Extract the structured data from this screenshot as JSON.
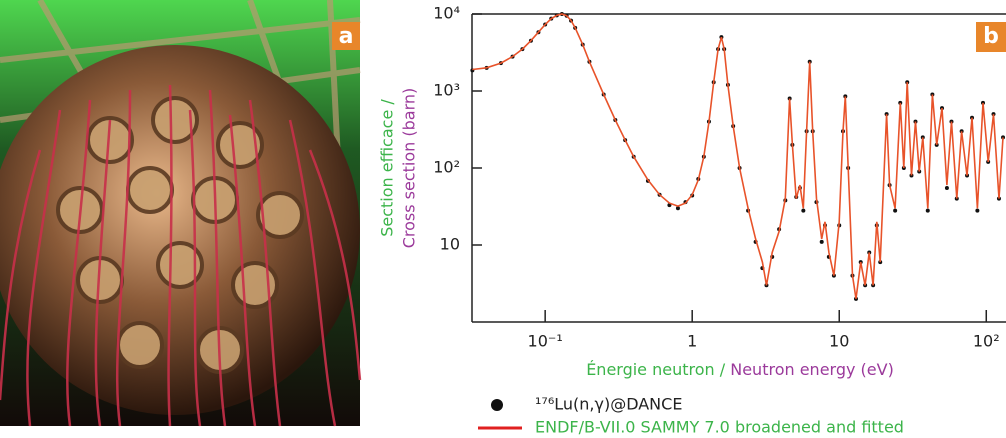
{
  "photo_label": "a",
  "chart_data": {
    "type": "line",
    "panel_label": "b",
    "ylabel": [
      "Section efficace /",
      "Cross section (barn)"
    ],
    "xlabel": [
      "Énergie neutron /",
      "Neutron energy (eV)"
    ],
    "xscale": "log",
    "yscale": "log",
    "xlim": [
      0.0318,
      132
    ],
    "ylim": [
      1,
      10000
    ],
    "xticks": [
      {
        "value": 0.1,
        "label": "10⁻¹"
      },
      1,
      10,
      {
        "value": 100,
        "label": "10²"
      }
    ],
    "yticks": [
      10,
      {
        "value": 100,
        "label": "10²"
      },
      {
        "value": 1000,
        "label": "10³"
      },
      {
        "value": 10000,
        "label": "10⁴"
      }
    ],
    "x": [
      0.032,
      0.04,
      0.05,
      0.06,
      0.07,
      0.08,
      0.09,
      0.1,
      0.11,
      0.12,
      0.13,
      0.14,
      0.15,
      0.16,
      0.18,
      0.2,
      0.25,
      0.3,
      0.35,
      0.4,
      0.5,
      0.6,
      0.7,
      0.8,
      0.9,
      1.0,
      1.1,
      1.2,
      1.3,
      1.4,
      1.5,
      1.58,
      1.65,
      1.75,
      1.9,
      2.1,
      2.4,
      2.7,
      3.0,
      3.2,
      3.5,
      3.9,
      4.3,
      4.6,
      4.8,
      5.1,
      5.4,
      5.7,
      6.0,
      6.3,
      6.6,
      7.0,
      7.6,
      8.0,
      8.5,
      9.2,
      10.0,
      10.6,
      11.0,
      11.5,
      12.3,
      13.0,
      14.0,
      15.0,
      16.0,
      17.0,
      18.0,
      19.0,
      21.0,
      22.0,
      24.0,
      26.0,
      27.5,
      29.0,
      31.0,
      33.0,
      35.0,
      37.0,
      40.0,
      43.0,
      46.0,
      50.0,
      54.0,
      58.0,
      63.0,
      68.0,
      74.0,
      80.0,
      87.0,
      95.0,
      103,
      112,
      122,
      130
    ],
    "series": [
      {
        "name": "¹⁷⁶Lu(n,γ)@DANCE",
        "color": "#111111",
        "marker": "dot",
        "values": [
          1850,
          2000,
          2300,
          2800,
          3500,
          4500,
          5800,
          7300,
          8700,
          9600,
          10000,
          9500,
          8200,
          6600,
          4000,
          2400,
          900,
          420,
          230,
          140,
          68,
          45,
          33,
          30,
          36,
          44,
          72,
          140,
          400,
          1300,
          3500,
          5000,
          3500,
          1200,
          350,
          100,
          28,
          11,
          5,
          3,
          7,
          16,
          38,
          800,
          200,
          42,
          55,
          28,
          300,
          2400,
          300,
          36,
          11,
          18,
          7,
          4,
          18,
          300,
          850,
          100,
          4,
          2,
          6,
          3,
          8,
          3,
          18,
          6,
          500,
          60,
          28,
          700,
          100,
          1300,
          80,
          400,
          90,
          250,
          28,
          900,
          200,
          600,
          55,
          400,
          40,
          300,
          80,
          450,
          28,
          700,
          120,
          500,
          40,
          250
        ]
      },
      {
        "name": "ENDF/B-VII.0 SAMMY 7.0 broadened and fitted",
        "color": "#e8532a",
        "legend_color": "#e02020",
        "marker": "line",
        "values": [
          1900,
          2000,
          2300,
          2800,
          3500,
          4500,
          5800,
          7300,
          8700,
          9600,
          10000,
          9500,
          8200,
          6600,
          4000,
          2400,
          900,
          420,
          230,
          140,
          70,
          45,
          35,
          32,
          35,
          45,
          70,
          140,
          400,
          1300,
          3500,
          5000,
          3500,
          1200,
          350,
          100,
          30,
          12,
          6,
          3,
          8,
          15,
          40,
          800,
          200,
          40,
          60,
          30,
          300,
          2400,
          300,
          40,
          12,
          20,
          8,
          4,
          20,
          300,
          850,
          100,
          4,
          2,
          6,
          3,
          8,
          3,
          20,
          6,
          500,
          60,
          30,
          700,
          100,
          1300,
          80,
          400,
          90,
          250,
          30,
          900,
          200,
          600,
          60,
          400,
          40,
          300,
          80,
          450,
          30,
          700,
          120,
          500,
          40,
          250
        ]
      }
    ]
  }
}
